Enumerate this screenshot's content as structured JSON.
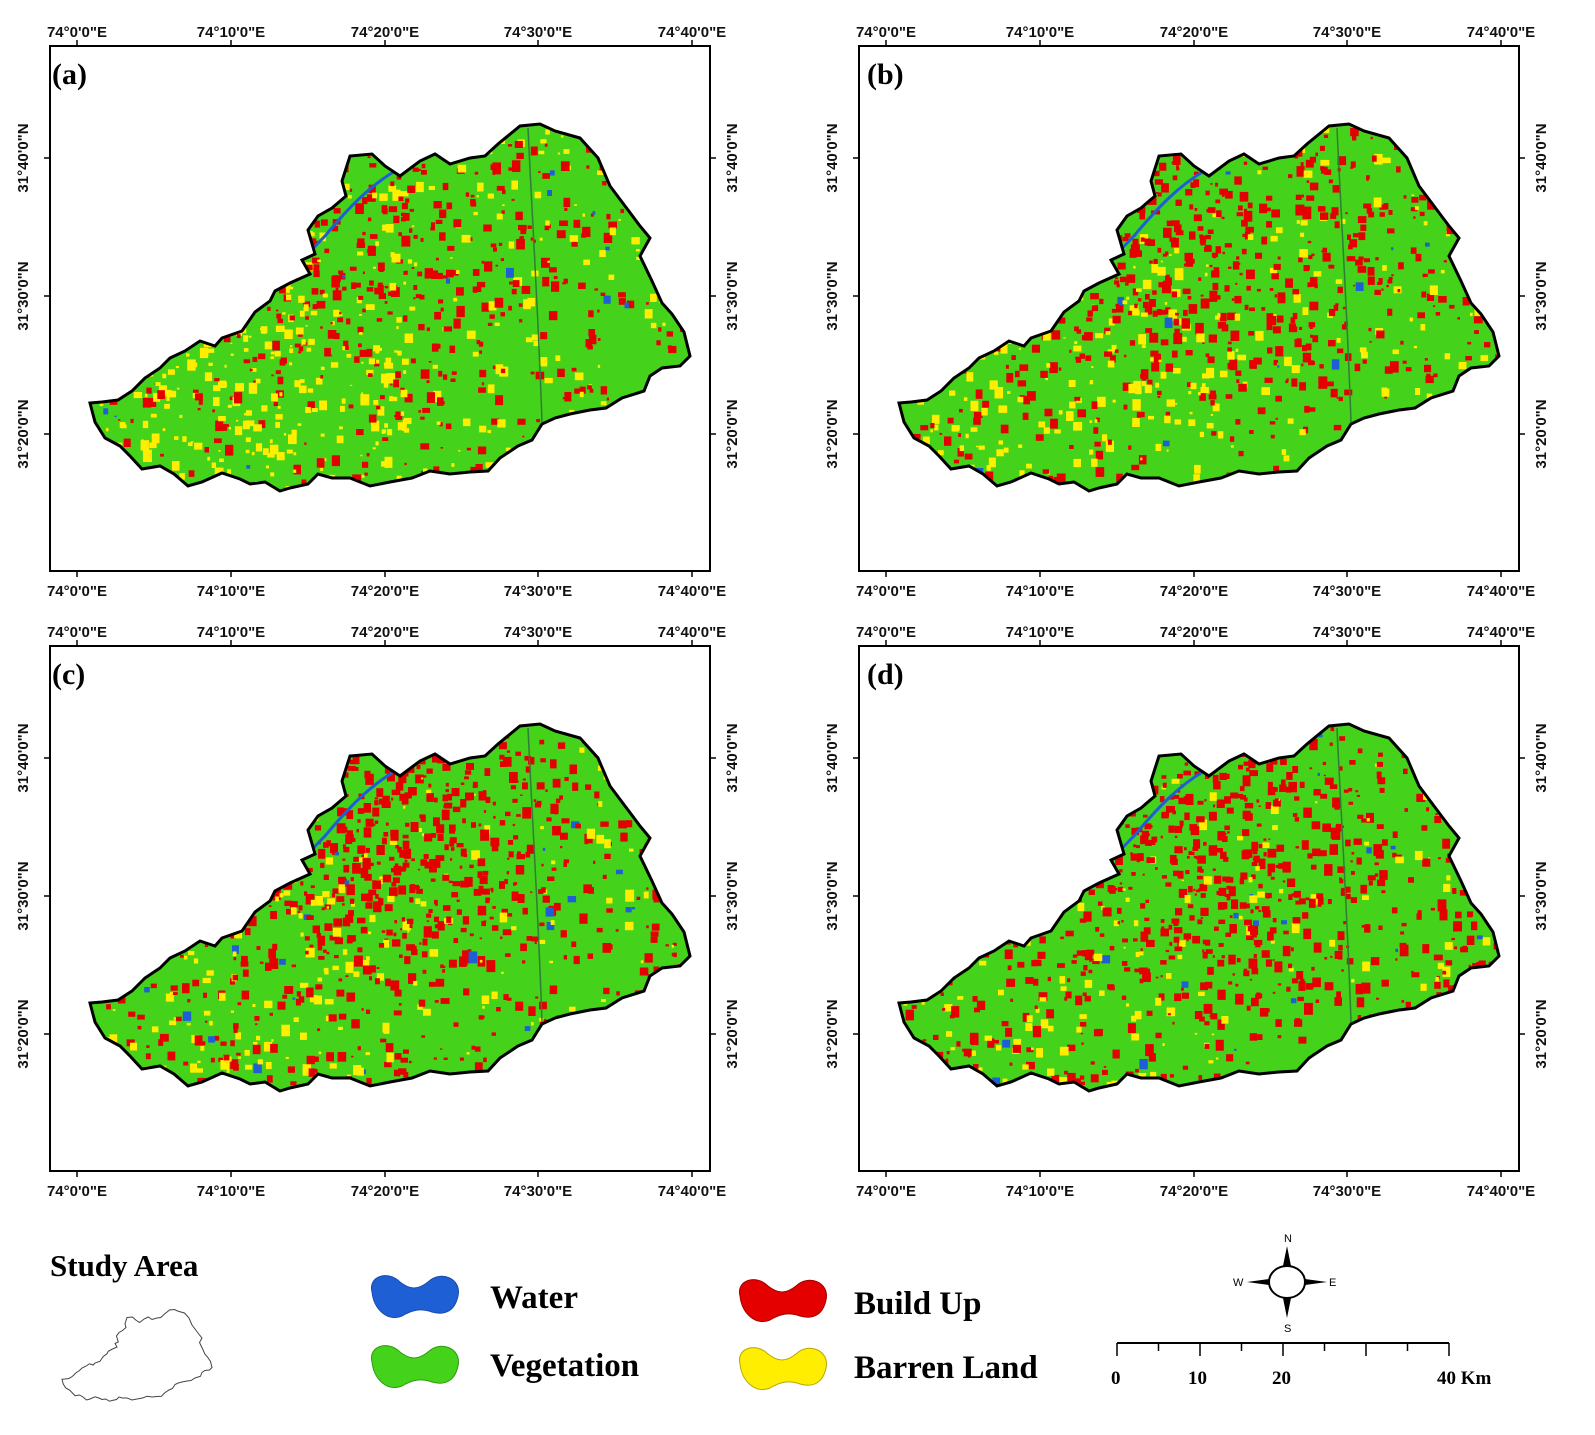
{
  "panels": [
    {
      "label": "(a)",
      "mix": {
        "water": 0.04,
        "buildup": 0.26,
        "barren": 0.26
      }
    },
    {
      "label": "(b)",
      "mix": {
        "water": 0.03,
        "buildup": 0.36,
        "barren": 0.14
      }
    },
    {
      "label": "(c)",
      "mix": {
        "water": 0.05,
        "buildup": 0.44,
        "barren": 0.12
      }
    },
    {
      "label": "(d)",
      "mix": {
        "water": 0.04,
        "buildup": 0.47,
        "barren": 0.09
      }
    }
  ],
  "x_ticks": [
    "74°0'0\"E",
    "74°10'0\"E",
    "74°20'0\"E",
    "74°30'0\"E",
    "74°40'0\"E"
  ],
  "y_ticks": [
    "31°40'0\"N",
    "31°30'0\"N",
    "31°20'0\"N"
  ],
  "legend": {
    "title": "Study Area",
    "classes": [
      {
        "name": "Water",
        "color": "#1f5fd6"
      },
      {
        "name": "Vegetation",
        "color": "#45d21a"
      },
      {
        "name": "Build Up",
        "color": "#e50000"
      },
      {
        "name": "Barren Land",
        "color": "#ffee00"
      }
    ]
  },
  "compass": {
    "n": "N",
    "s": "S",
    "e": "E",
    "w": "W"
  },
  "scale": {
    "labels": [
      "0",
      "10",
      "20",
      "40 Km"
    ]
  },
  "colors": {
    "water": "#1f5fd6",
    "vegetation": "#45d21a",
    "buildup": "#e50000",
    "barren": "#ffee00"
  }
}
